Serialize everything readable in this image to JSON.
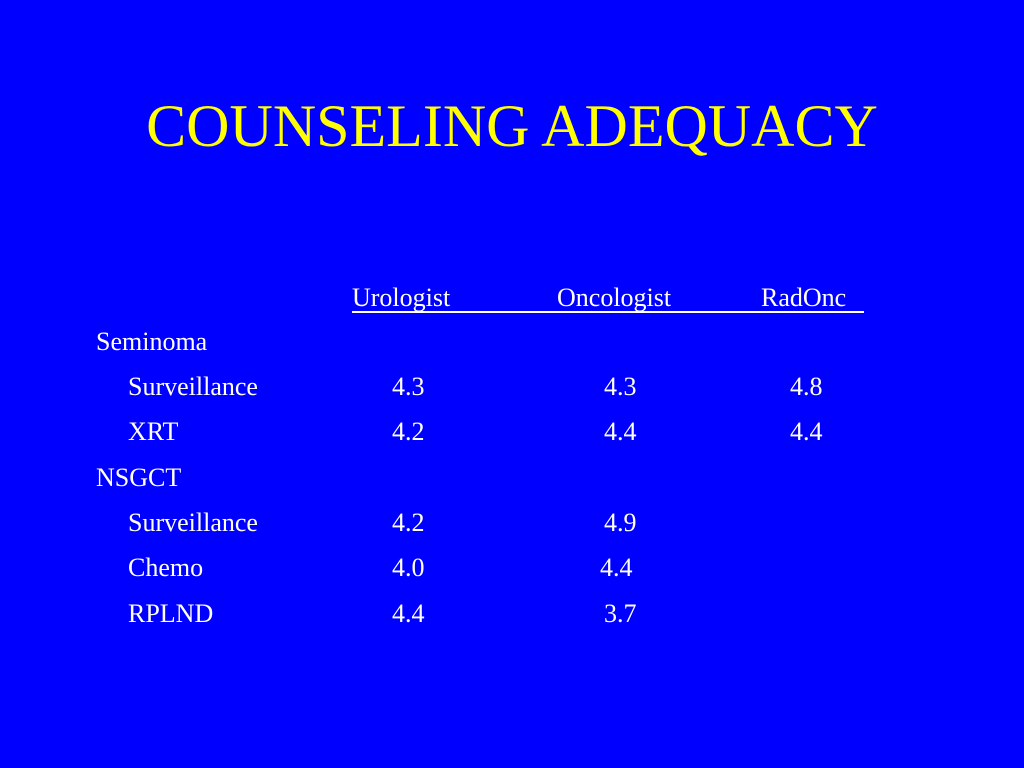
{
  "slide": {
    "title": "COUNSELING ADEQUACY",
    "colors": {
      "background": "#0000ff",
      "title": "#ffff00",
      "text": "#ffffff"
    }
  },
  "table": {
    "columns": [
      "Urologist",
      "Oncologist",
      "RadOnc"
    ],
    "groups": [
      {
        "label": "Seminoma",
        "rows": [
          {
            "label": "Surveillance",
            "urologist": "4.3",
            "oncologist": "4.3",
            "radonc": "4.8"
          },
          {
            "label": "XRT",
            "urologist": "4.2",
            "oncologist": "4.4",
            "radonc": "4.4"
          }
        ]
      },
      {
        "label": "NSGCT",
        "rows": [
          {
            "label": "Surveillance",
            "urologist": "4.2",
            "oncologist": "4.9",
            "radonc": ""
          },
          {
            "label": "Chemo",
            "urologist": "4.0",
            "oncologist": "4.4",
            "radonc": ""
          },
          {
            "label": "RPLND",
            "urologist": "4.4",
            "oncologist": "3.7",
            "radonc": ""
          }
        ]
      }
    ]
  }
}
